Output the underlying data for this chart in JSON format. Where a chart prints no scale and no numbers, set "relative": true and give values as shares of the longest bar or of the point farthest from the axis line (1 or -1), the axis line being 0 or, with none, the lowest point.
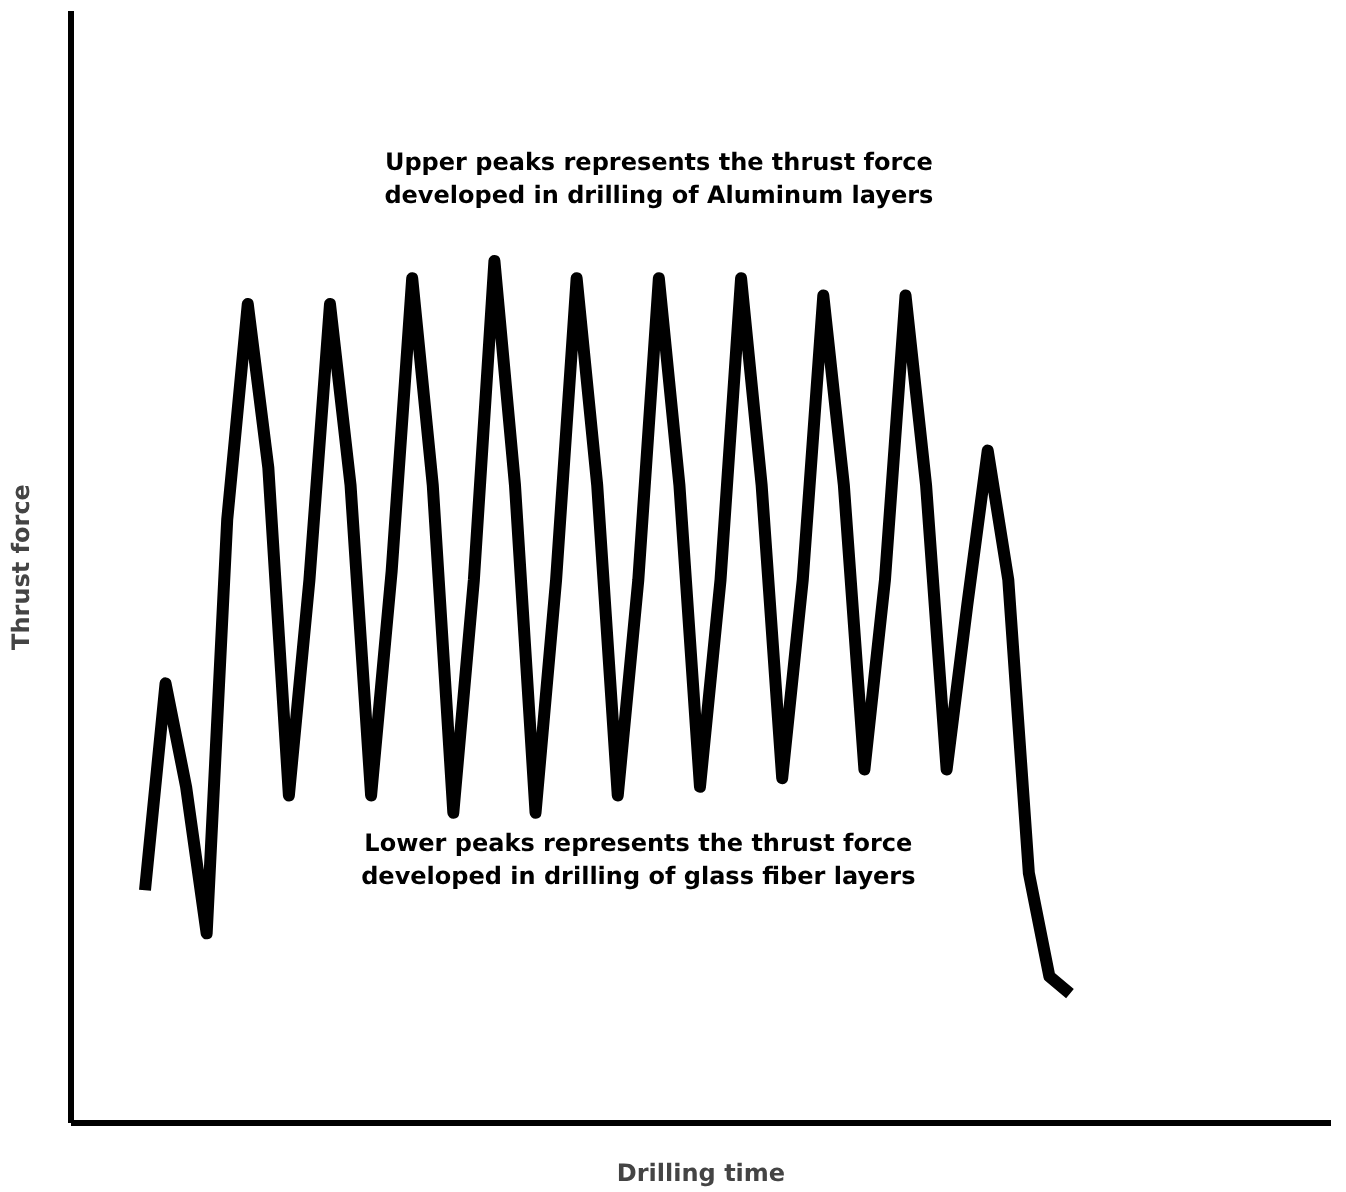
{
  "chart_data": {
    "type": "line",
    "relative": true,
    "xlabel": "Drilling time",
    "ylabel": "Thrust force",
    "annotations": [
      "Upper peaks represents the thrust force\ndeveloped in drilling of Aluminum layers",
      "Lower peaks represents the thrust force\ndeveloped in drilling of glass fiber layers"
    ],
    "categories": [
      null,
      null,
      null,
      null,
      null,
      null,
      null,
      null,
      null,
      null,
      null,
      null,
      null,
      null,
      null,
      null,
      null,
      null,
      null,
      null,
      null,
      null,
      null,
      null,
      null,
      null,
      null,
      null,
      null,
      null,
      null,
      null,
      null,
      null,
      null,
      null,
      null,
      null,
      null,
      null,
      null,
      null,
      null,
      null,
      null,
      null
    ],
    "series": [
      {
        "color": "#000000",
        "values": [
          0.27,
          0.51,
          0.39,
          0.22,
          0.7,
          0.95,
          0.76,
          0.38,
          0.63,
          0.95,
          0.74,
          0.38,
          0.64,
          0.98,
          0.74,
          0.36,
          0.63,
          1.0,
          0.74,
          0.36,
          0.63,
          0.98,
          0.74,
          0.38,
          0.63,
          0.98,
          0.74,
          0.39,
          0.63,
          0.98,
          0.74,
          0.4,
          0.63,
          0.96,
          0.74,
          0.41,
          0.63,
          0.96,
          0.74,
          0.41,
          0.6,
          0.78,
          0.63,
          0.29,
          0.17,
          0.15
        ]
      }
    ],
    "grid": false
  }
}
